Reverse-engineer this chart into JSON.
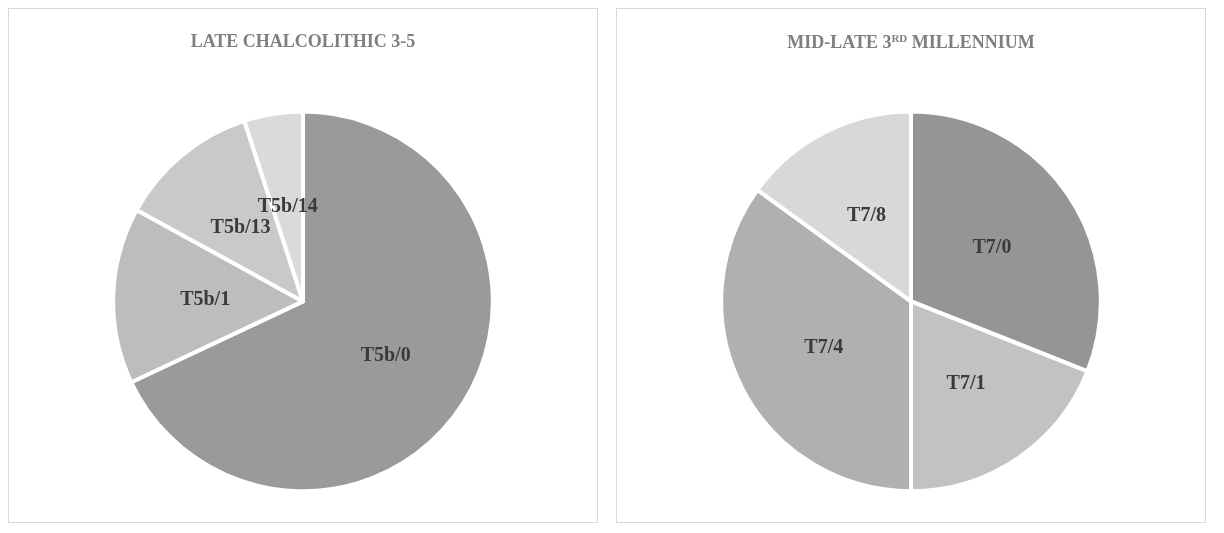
{
  "chart_data": [
    {
      "type": "pie",
      "title": "LATE CHALCOLITHIC 3-5",
      "categories": [
        "T5b/0",
        "T5b/1",
        "T5b/13",
        "T5b/14"
      ],
      "values": [
        68,
        15,
        12,
        5
      ],
      "colors": [
        "#9a9a9a",
        "#bdbdbd",
        "#c9c9c9",
        "#dadada"
      ]
    },
    {
      "type": "pie",
      "title": "MID-LATE 3$^{RD}$ MILLENNIUM",
      "categories": [
        "T7/0",
        "T7/1",
        "T7/4",
        "T7/8"
      ],
      "values": [
        31,
        19,
        35,
        15
      ],
      "colors": [
        "#959595",
        "#c2c2c2",
        "#b0b0b0",
        "#d8d8d8"
      ]
    }
  ]
}
